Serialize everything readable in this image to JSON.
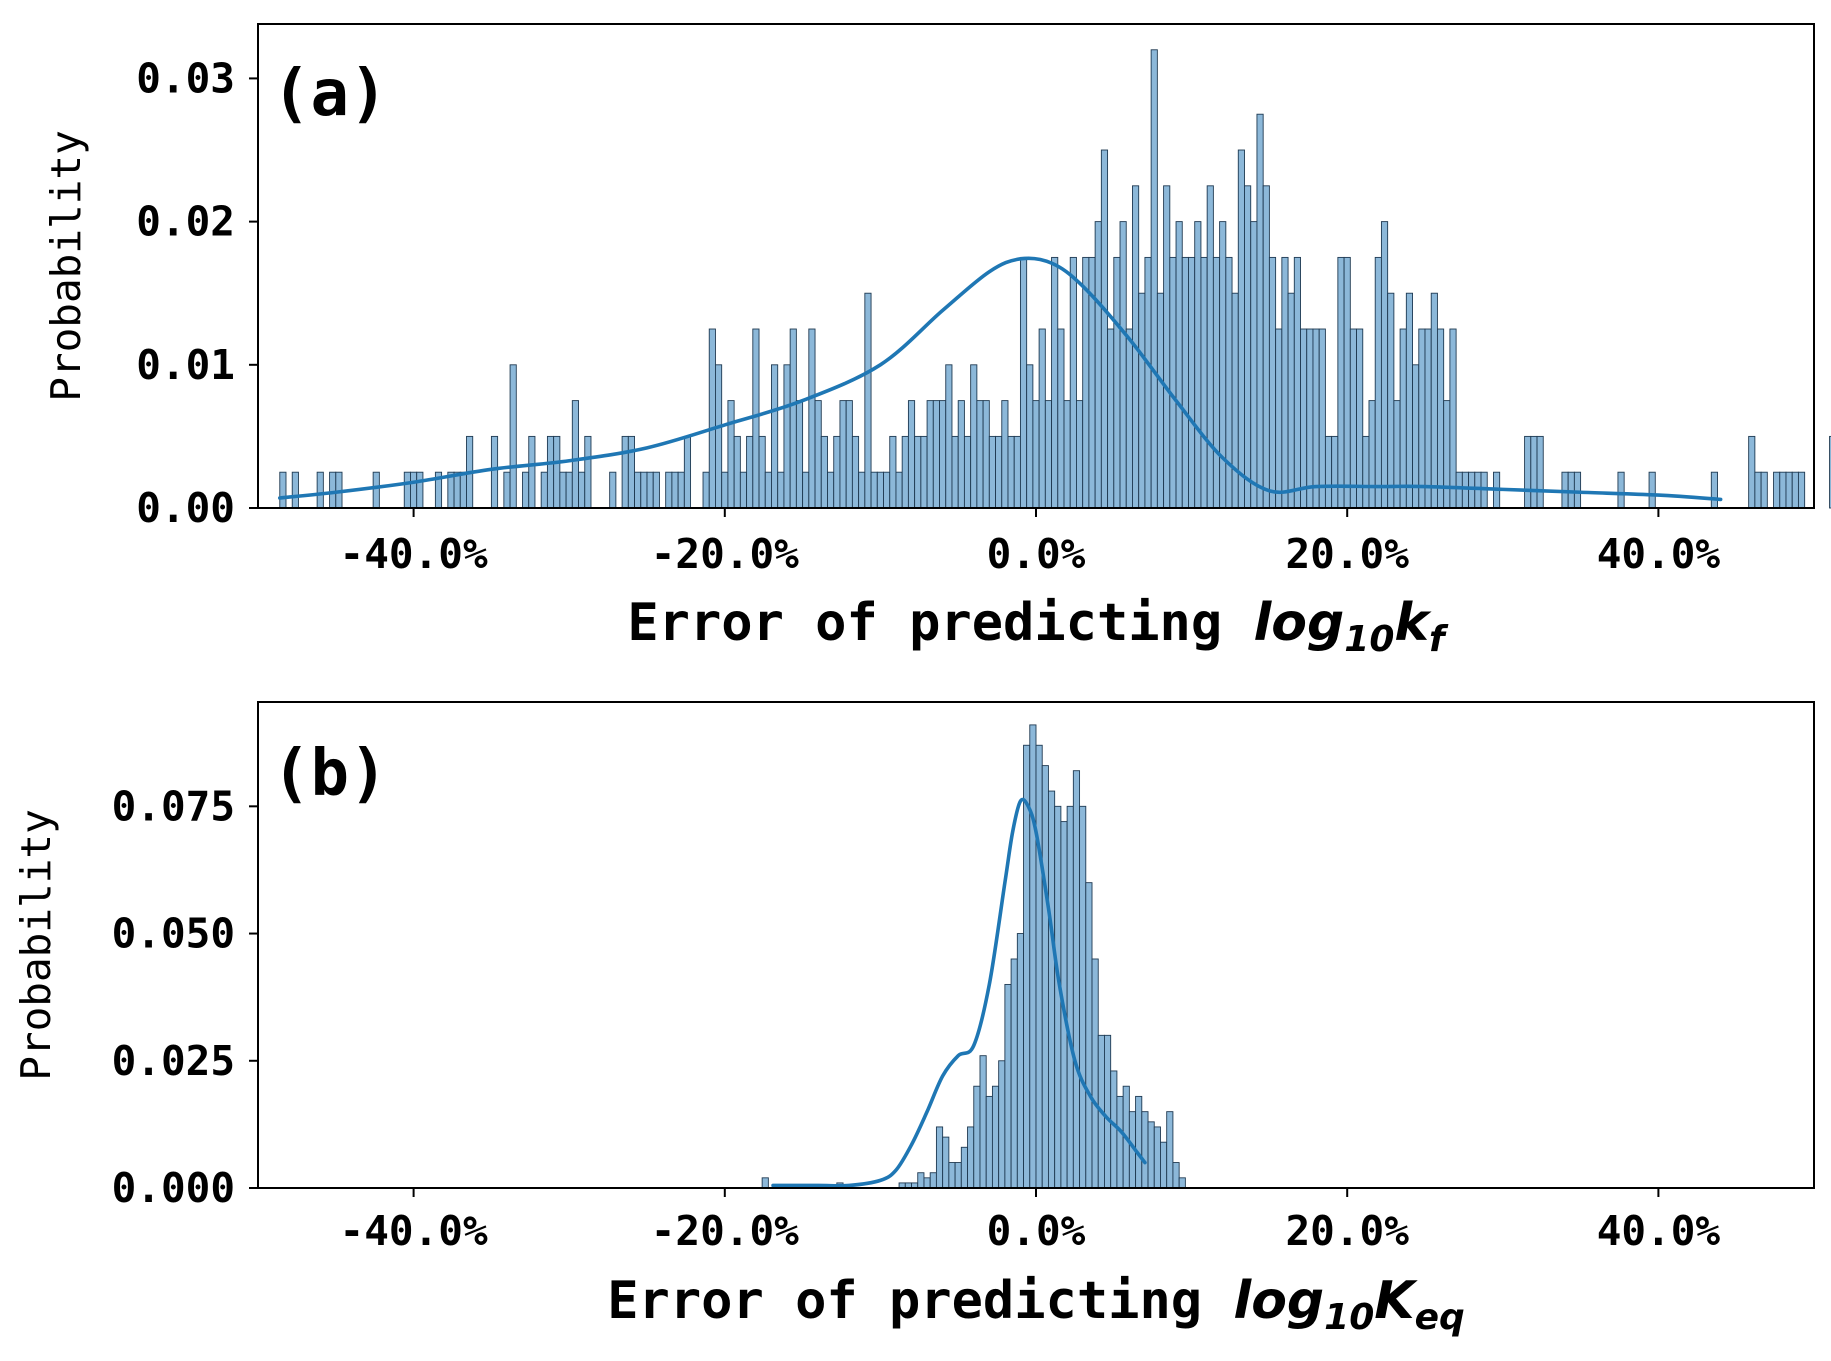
{
  "chart_data": [
    {
      "type": "bar",
      "panel_label": "(a)",
      "xlabel_text": "Error of predicting ",
      "xlabel_math": {
        "base": "log",
        "sub": "10",
        "var": "k",
        "var_sub": "f"
      },
      "ylabel": "Probability",
      "xlim": [
        -50,
        50
      ],
      "ylim": [
        0,
        0.0338
      ],
      "x_ticks": [
        -40,
        -20,
        0,
        20,
        40
      ],
      "x_tick_labels": [
        "-40.0%",
        "-20.0%",
        "0.0%",
        "20.0%",
        "40.0%"
      ],
      "y_ticks": [
        0,
        0.01,
        0.02,
        0.03
      ],
      "y_tick_labels": [
        "0.00",
        "0.01",
        "0.02",
        "0.03"
      ],
      "grid": false,
      "bin_start": -48.6,
      "bin_width": 0.4,
      "values": [
        0.0025,
        0,
        0.0025,
        0,
        0,
        0,
        0.0025,
        0,
        0.0025,
        0.0025,
        0,
        0,
        0,
        0,
        0,
        0.0025,
        0,
        0,
        0,
        0,
        0.0025,
        0.0025,
        0.0025,
        0,
        0,
        0.0025,
        0,
        0.0025,
        0.0025,
        0.0025,
        0.005,
        0,
        0,
        0,
        0.005,
        0,
        0.0025,
        0.01,
        0,
        0.0025,
        0.005,
        0,
        0.0025,
        0.005,
        0.005,
        0.0025,
        0.0025,
        0.0075,
        0.0025,
        0.005,
        0,
        0,
        0,
        0.0025,
        0,
        0.005,
        0.005,
        0.0025,
        0.0025,
        0.0025,
        0.0025,
        0,
        0.0025,
        0.0025,
        0.0025,
        0.005,
        0,
        0,
        0.0025,
        0.0125,
        0.01,
        0.0025,
        0.0075,
        0.005,
        0.0025,
        0.005,
        0.0125,
        0.005,
        0.0025,
        0.01,
        0.0025,
        0.01,
        0.0125,
        0.0075,
        0.0025,
        0.0125,
        0.0075,
        0.005,
        0.0025,
        0.005,
        0.0075,
        0.0075,
        0.005,
        0.0025,
        0.015,
        0.0025,
        0.0025,
        0.0025,
        0.005,
        0.0025,
        0.005,
        0.0075,
        0.005,
        0.005,
        0.0075,
        0.0075,
        0.0075,
        0.01,
        0.005,
        0.0075,
        0.005,
        0.01,
        0.0075,
        0.0075,
        0.005,
        0.005,
        0.0075,
        0.005,
        0.005,
        0.0175,
        0.01,
        0.0075,
        0.0125,
        0.0075,
        0.0175,
        0.0125,
        0.0075,
        0.0175,
        0.0075,
        0.0175,
        0.0175,
        0.02,
        0.025,
        0.0125,
        0.0175,
        0.02,
        0.0125,
        0.0225,
        0.015,
        0.0175,
        0.032,
        0.015,
        0.0225,
        0.0175,
        0.02,
        0.0175,
        0.0175,
        0.02,
        0.0175,
        0.0225,
        0.0175,
        0.02,
        0.0175,
        0.015,
        0.025,
        0.0225,
        0.02,
        0.0275,
        0.0225,
        0.0175,
        0.0125,
        0.0175,
        0.015,
        0.0175,
        0.0125,
        0.0125,
        0.0125,
        0.0125,
        0.005,
        0.005,
        0.0175,
        0.0175,
        0.0125,
        0.0125,
        0.005,
        0.0075,
        0.0175,
        0.02,
        0.015,
        0.0075,
        0.0125,
        0.015,
        0.01,
        0.0125,
        0.0125,
        0.015,
        0.0125,
        0.0075,
        0.0125,
        0.0025,
        0.0025,
        0.0025,
        0.0025,
        0.0025,
        0,
        0.0025,
        0,
        0,
        0,
        0,
        0.005,
        0.005,
        0.005,
        0,
        0,
        0,
        0.0025,
        0.0025,
        0.0025,
        0,
        0,
        0,
        0,
        0,
        0,
        0.0025,
        0,
        0,
        0,
        0,
        0.0025,
        0,
        0,
        0,
        0,
        0,
        0,
        0,
        0,
        0,
        0.0025,
        0,
        0,
        0,
        0,
        0,
        0.005,
        0.0025,
        0.0025,
        0,
        0.0025,
        0.0025,
        0.0025,
        0.0025,
        0.0025,
        0,
        0,
        0,
        0,
        0.005,
        0,
        0,
        0,
        0.0025,
        0,
        0,
        0,
        0,
        0,
        0,
        0,
        0,
        0.0025,
        0,
        0,
        0,
        0,
        0.0025,
        0,
        0.0025,
        0,
        0,
        0,
        0,
        0,
        0,
        0,
        0,
        0,
        0,
        0,
        0,
        0,
        0,
        0,
        0,
        0.005,
        0,
        0,
        0,
        0,
        0.005,
        0,
        0,
        0,
        0,
        0,
        0,
        0,
        0,
        0,
        0,
        0,
        0,
        0,
        0,
        0,
        0,
        0,
        0,
        0,
        0,
        0,
        0,
        0,
        0,
        0,
        0,
        0,
        0.0025,
        0,
        0,
        0,
        0,
        0,
        0.005,
        0.0025,
        0,
        0.0025,
        0,
        0,
        0,
        0,
        0,
        0,
        0,
        0,
        0,
        0,
        0,
        0,
        0,
        0,
        0,
        0,
        0,
        0,
        0,
        0,
        0,
        0,
        0,
        0,
        0,
        0,
        0,
        0,
        0,
        0,
        0,
        0,
        0,
        0,
        0,
        0,
        0,
        0,
        0,
        0,
        0,
        0,
        0,
        0,
        0,
        0,
        0,
        0,
        0,
        0,
        0,
        0,
        0,
        0,
        0,
        0,
        0,
        0,
        0,
        0,
        0,
        0,
        0,
        0,
        0,
        0,
        0,
        0,
        0,
        0,
        0
      ],
      "kde": {
        "x": [
          -48.6,
          -45,
          -40,
          -35,
          -30,
          -25,
          -20,
          -15,
          -10,
          -6,
          -3,
          -1,
          1,
          3,
          6,
          9,
          12,
          15,
          18,
          22,
          25,
          30,
          35,
          40,
          44
        ],
        "y": [
          0.0007,
          0.0011,
          0.0018,
          0.0027,
          0.0033,
          0.0042,
          0.0058,
          0.0075,
          0.01,
          0.0138,
          0.0165,
          0.0174,
          0.0171,
          0.0155,
          0.0118,
          0.0075,
          0.0035,
          0.0012,
          0.0015,
          0.0015,
          0.0015,
          0.0013,
          0.0011,
          0.0009,
          0.0006
        ]
      },
      "bar_color": "#8cb8d9",
      "bar_edge": "#1f3a52",
      "line_color": "#1f77b4"
    },
    {
      "type": "bar",
      "panel_label": "(b)",
      "xlabel_text": "Error of predicting ",
      "xlabel_math": {
        "base": "log",
        "sub": "10",
        "var": "K",
        "var_sub": "eq"
      },
      "ylabel": "Probability",
      "xlim": [
        -50,
        50
      ],
      "ylim": [
        0,
        0.0955
      ],
      "x_ticks": [
        -40,
        -20,
        0,
        20,
        40
      ],
      "x_tick_labels": [
        "-40.0%",
        "-20.0%",
        "0.0%",
        "20.0%",
        "40.0%"
      ],
      "y_ticks": [
        0,
        0.025,
        0.05,
        0.075
      ],
      "y_tick_labels": [
        "0.000",
        "0.025",
        "0.050",
        "0.075"
      ],
      "grid": false,
      "bin_start": -17.6,
      "bin_width": 0.4,
      "values": [
        0.002,
        0,
        0,
        0,
        0,
        0,
        0,
        0,
        0,
        0,
        0,
        0,
        0.001,
        0,
        0,
        0,
        0,
        0,
        0,
        0,
        0,
        0,
        0.001,
        0.001,
        0.001,
        0.003,
        0.002,
        0.003,
        0.012,
        0.01,
        0.005,
        0.005,
        0.008,
        0.012,
        0.02,
        0.026,
        0.018,
        0.02,
        0.025,
        0.04,
        0.045,
        0.05,
        0.087,
        0.091,
        0.087,
        0.083,
        0.078,
        0.075,
        0.072,
        0.075,
        0.082,
        0.075,
        0.06,
        0.045,
        0.03,
        0.03,
        0.023,
        0.018,
        0.02,
        0.015,
        0.018,
        0.015,
        0.013,
        0.012,
        0.009,
        0.015,
        0.005,
        0.002
      ],
      "kde": {
        "x": [
          -16.9,
          -14,
          -12,
          -10,
          -9,
          -8,
          -7,
          -6,
          -5,
          -4,
          -3,
          -2,
          -1.5,
          -1,
          -0.5,
          0,
          0.8,
          1.5,
          2.5,
          3.5,
          4.5,
          5.5,
          6.5,
          7
        ],
        "y": [
          0.0005,
          0.0005,
          0.0005,
          0.0015,
          0.0035,
          0.0085,
          0.015,
          0.022,
          0.026,
          0.028,
          0.04,
          0.06,
          0.07,
          0.076,
          0.075,
          0.07,
          0.055,
          0.04,
          0.025,
          0.018,
          0.014,
          0.011,
          0.007,
          0.005
        ]
      },
      "bar_color": "#8cb8d9",
      "bar_edge": "#1f3a52",
      "line_color": "#1f77b4"
    }
  ]
}
